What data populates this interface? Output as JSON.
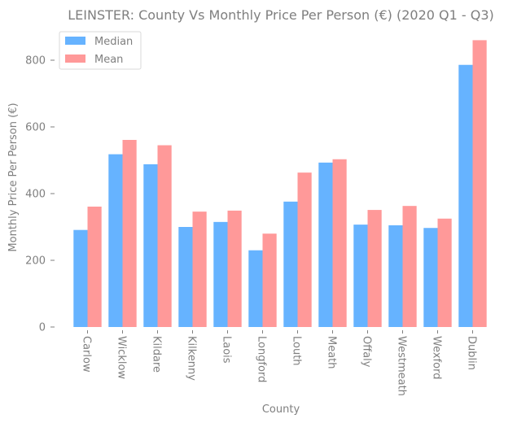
{
  "chart_data": {
    "type": "bar",
    "title": "LEINSTER: County Vs Monthly Price Per Person (€) (2020 Q1 - Q3)",
    "xlabel": "County",
    "ylabel": "Monthly Price Per Person (€)",
    "categories": [
      "Carlow",
      "Wicklow",
      "Kildare",
      "Kilkenny",
      "Laois",
      "Longford",
      "Louth",
      "Meath",
      "Offaly",
      "Westmeath",
      "Wexford",
      "Dublin"
    ],
    "series": [
      {
        "name": "Median",
        "color": "#66b3ff",
        "values": [
          291,
          518,
          488,
          300,
          315,
          230,
          376,
          493,
          307,
          305,
          297,
          786
        ]
      },
      {
        "name": "Mean",
        "color": "#ff9999",
        "values": [
          361,
          561,
          545,
          346,
          349,
          280,
          463,
          503,
          351,
          363,
          325,
          860
        ]
      }
    ],
    "yticks": [
      0,
      200,
      400,
      600,
      800
    ],
    "ylim": [
      0,
      900
    ],
    "grid": false,
    "legend_position": "top-left"
  }
}
